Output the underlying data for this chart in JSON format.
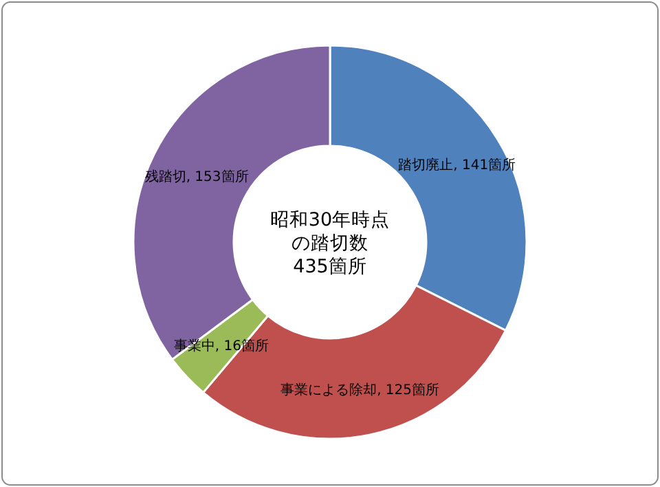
{
  "chart_data": {
    "type": "donut",
    "categories": [
      "踏切廃止",
      "事業による除却",
      "事業中",
      "残踏切"
    ],
    "values": [
      141,
      125,
      16,
      153
    ],
    "value_labels": [
      "141箇所",
      "125箇所",
      "16箇所",
      "153箇所"
    ],
    "colors": [
      "#4f81bd",
      "#c0504d",
      "#9bbb59",
      "#8064a2"
    ],
    "annotations": [
      "昭和30年時点",
      "の踏切数",
      "435箇所"
    ],
    "legend": false
  }
}
